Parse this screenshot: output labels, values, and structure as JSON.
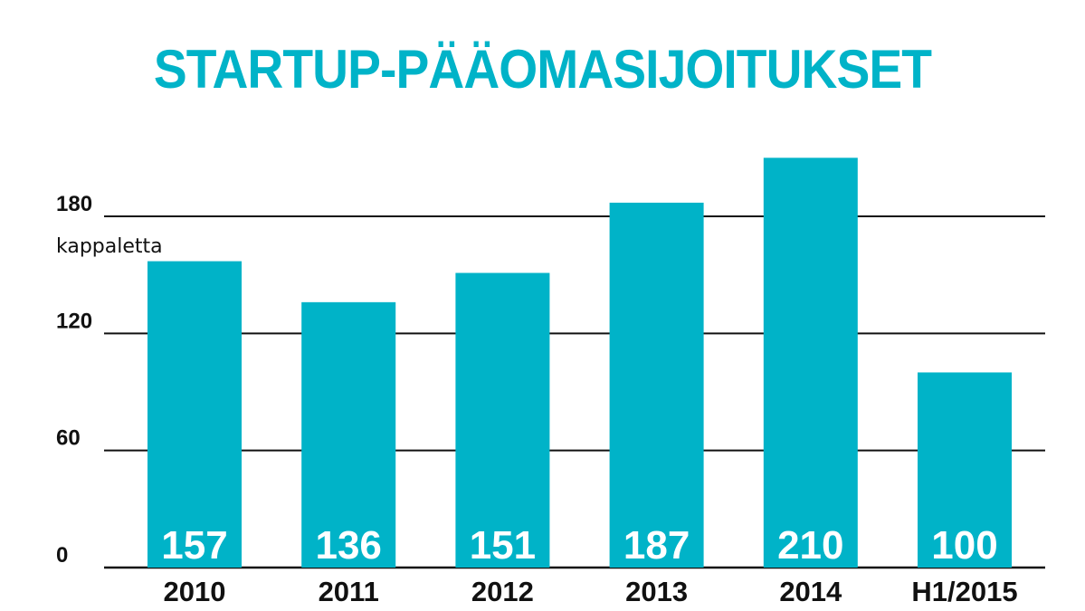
{
  "chart_data": {
    "type": "bar",
    "title": "STARTUP-PÄÄOMASIJOITUKSET",
    "unit_label": "kappaletta",
    "categories": [
      "2010",
      "2011",
      "2012",
      "2013",
      "2014",
      "H1/2015"
    ],
    "values": [
      157,
      136,
      151,
      187,
      210,
      100
    ],
    "yticks": [
      0,
      60,
      120,
      180
    ],
    "ylim": [
      0,
      180
    ],
    "grid": true,
    "legend": "none",
    "colors": {
      "bar": "#00b3c8",
      "grid": "#111111",
      "title": "#00b3c8",
      "value_label": "#ffffff"
    }
  }
}
